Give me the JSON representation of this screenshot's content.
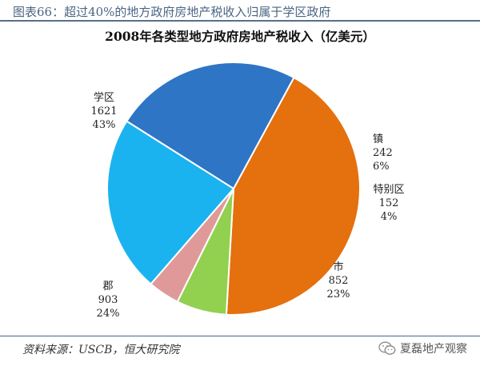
{
  "figure_title": "图表66：超过40%的地方政府房地产税收入归属于学区政府",
  "source": "资料来源：USCB，恒大研究院",
  "brand": {
    "name": "夏磊地产观察",
    "icon": "wechat-icon"
  },
  "chart_data": {
    "type": "pie",
    "title": "2008年各类型地方政府房地产税收入（亿美元）",
    "categories": [
      "学区",
      "镇",
      "特别区",
      "市",
      "郡"
    ],
    "values": [
      1621,
      242,
      152,
      852,
      903
    ],
    "value_labels": [
      "1621",
      "242",
      "152",
      "852",
      "903"
    ],
    "percent_labels": [
      "43%",
      "6%",
      "4%",
      "23%",
      "24%"
    ],
    "colors": [
      "#e5700e",
      "#92d050",
      "#e09999",
      "#1ab3ef",
      "#2e75c5"
    ],
    "start_angle_deg": 61.5,
    "direction": "clockwise",
    "legend": "none"
  }
}
